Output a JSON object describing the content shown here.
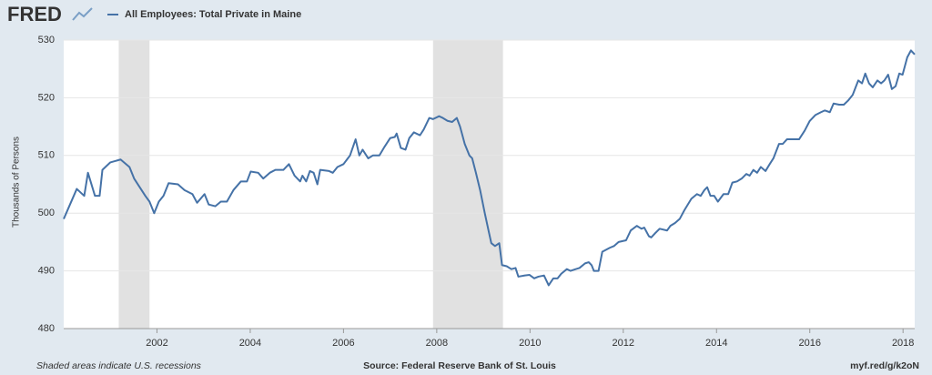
{
  "chart_data": {
    "type": "line",
    "brand": "FRED",
    "y_label": "Thousands of Persons",
    "notes": [
      "Shaded areas indicate U.S. recessions",
      "Source: Federal Reserve Bank of St. Louis",
      "myf.red/g/k2oN"
    ],
    "xlim": [
      2000,
      2018.25
    ],
    "xticks": [
      2002,
      2004,
      2006,
      2008,
      2010,
      2012,
      2014,
      2016,
      2018
    ],
    "ylim": [
      480,
      530
    ],
    "yticks": [
      480,
      490,
      500,
      510,
      520,
      530
    ],
    "grid": true,
    "recessions": [
      [
        2001.18,
        2001.84
      ],
      [
        2007.92,
        2009.42
      ]
    ],
    "x": [
      2000,
      2000.28,
      2000.44,
      2000.52,
      2000.67,
      2000.77,
      2000.83,
      2001,
      2001.22,
      2001.41,
      2001.51,
      2001.75,
      2001.84,
      2001.94,
      2002.04,
      2002.14,
      2002.25,
      2002.45,
      2002.59,
      2002.76,
      2002.86,
      2003.02,
      2003.11,
      2003.25,
      2003.37,
      2003.5,
      2003.64,
      2003.8,
      2003.93,
      2004.01,
      2004.17,
      2004.28,
      2004.42,
      2004.54,
      2004.71,
      2004.83,
      2004.95,
      2005.07,
      2005.12,
      2005.2,
      2005.28,
      2005.36,
      2005.44,
      2005.5,
      2005.69,
      2005.77,
      2005.87,
      2006,
      2006.14,
      2006.26,
      2006.34,
      2006.41,
      2006.53,
      2006.63,
      2006.77,
      2006.88,
      2007,
      2007.1,
      2007.14,
      2007.23,
      2007.33,
      2007.41,
      2007.51,
      2007.64,
      2007.72,
      2007.84,
      2007.92,
      2008.05,
      2008.13,
      2008.23,
      2008.33,
      2008.43,
      2008.5,
      2008.6,
      2008.7,
      2008.76,
      2008.84,
      2008.93,
      2009.03,
      2009.11,
      2009.17,
      2009.25,
      2009.34,
      2009.4,
      2009.5,
      2009.6,
      2009.69,
      2009.75,
      2009.89,
      2009.99,
      2010.09,
      2010.18,
      2010.3,
      2010.4,
      2010.5,
      2010.59,
      2010.67,
      2010.79,
      2010.87,
      2010.98,
      2011.06,
      2011.18,
      2011.26,
      2011.32,
      2011.37,
      2011.47,
      2011.55,
      2011.71,
      2011.8,
      2011.9,
      2012.06,
      2012.16,
      2012.29,
      2012.39,
      2012.45,
      2012.55,
      2012.6,
      2012.68,
      2012.78,
      2012.94,
      2013.01,
      2013.11,
      2013.21,
      2013.31,
      2013.46,
      2013.58,
      2013.66,
      2013.74,
      2013.8,
      2013.87,
      2013.95,
      2014.03,
      2014.15,
      2014.25,
      2014.34,
      2014.44,
      2014.54,
      2014.64,
      2014.71,
      2014.79,
      2014.87,
      2014.95,
      2015.05,
      2015.14,
      2015.22,
      2015.34,
      2015.42,
      2015.51,
      2015.65,
      2015.77,
      2015.89,
      2016,
      2016.12,
      2016.24,
      2016.32,
      2016.43,
      2016.51,
      2016.63,
      2016.73,
      2016.82,
      2016.92,
      2017.04,
      2017.12,
      2017.19,
      2017.27,
      2017.35,
      2017.45,
      2017.53,
      2017.6,
      2017.68,
      2017.76,
      2017.84,
      2017.92,
      2017.99,
      2018.09,
      2018.17,
      2018.25
    ],
    "series": [
      {
        "name": "All Employees: Total Private in Maine",
        "color": "#4572a7",
        "values": [
          499,
          504.2,
          503,
          507,
          503,
          503,
          507.5,
          508.8,
          509.3,
          508,
          506,
          503,
          502,
          500,
          502,
          503,
          505.2,
          505,
          504,
          503.3,
          501.8,
          503.3,
          501.5,
          501.2,
          502,
          502,
          504,
          505.5,
          505.5,
          507.2,
          507,
          506,
          507,
          507.5,
          507.5,
          508.5,
          506.5,
          505.5,
          506.5,
          505.5,
          507.3,
          507,
          505,
          507.5,
          507.3,
          507,
          508,
          508.5,
          510,
          512.8,
          510,
          511,
          509.5,
          510,
          510,
          511.5,
          513,
          513.2,
          513.8,
          511.3,
          511,
          513,
          514,
          513.5,
          514.5,
          516.5,
          516.3,
          516.8,
          516.5,
          516,
          515.8,
          516.5,
          515,
          512,
          510,
          509.5,
          507,
          504,
          500,
          497,
          494.8,
          494.3,
          494.8,
          491,
          490.8,
          490.3,
          490.5,
          489,
          489.2,
          489.3,
          488.7,
          489,
          489.2,
          487.5,
          488.7,
          488.7,
          489.5,
          490.3,
          490,
          490.3,
          490.5,
          491.3,
          491.5,
          491,
          490,
          490,
          493.3,
          494,
          494.3,
          495,
          495.3,
          497,
          497.8,
          497.3,
          497.5,
          496,
          495.8,
          496.5,
          497.3,
          497,
          497.8,
          498.3,
          499,
          500.5,
          502.5,
          503.3,
          503,
          504,
          504.5,
          503,
          503,
          502,
          503.3,
          503.3,
          505.3,
          505.5,
          506,
          506.8,
          506.5,
          507.5,
          507,
          508,
          507.3,
          508.5,
          509.5,
          512,
          512,
          512.8,
          512.8,
          512.8,
          514.3,
          516,
          517,
          517.5,
          517.8,
          517.5,
          519,
          518.8,
          518.8,
          519.5,
          520.5,
          523,
          522.5,
          524.2,
          522.5,
          521.8,
          523,
          522.5,
          523,
          524,
          521.5,
          522,
          524.2,
          524,
          527,
          528.2,
          527.5
        ]
      }
    ]
  }
}
